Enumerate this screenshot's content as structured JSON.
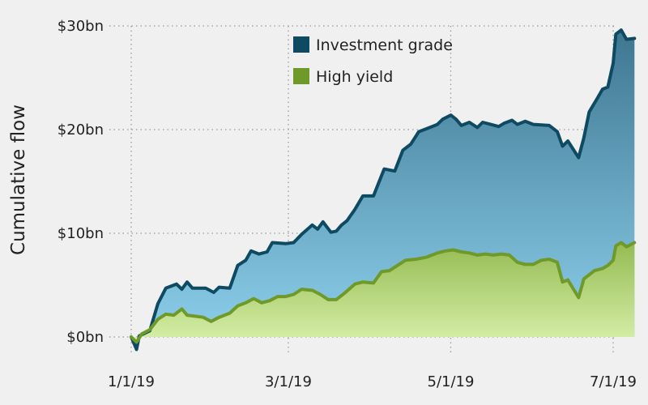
{
  "chart_data": {
    "type": "area",
    "ylabel": "Cumulative flow",
    "xlabel": "",
    "y_ticks": [
      "$0bn",
      "$10bn",
      "$20bn",
      "$30bn"
    ],
    "y_tick_values": [
      0,
      10,
      20,
      30
    ],
    "x_ticks": [
      "1/1/19",
      "3/1/19",
      "5/1/19",
      "7/1/19"
    ],
    "x_tick_values": [
      "2019-01-01",
      "2019-03-01",
      "2019-05-01",
      "2019-07-01"
    ],
    "xlim": [
      "2019-01-01",
      "2019-07-01"
    ],
    "ylim": [
      0,
      30
    ],
    "grid": true,
    "legend": "top-center",
    "series": [
      {
        "name": "Investment grade",
        "color": "#0e4a62",
        "fill_top": "#3e7690",
        "fill_bottom": "#8fd2ee",
        "points": [
          [
            "2019-01-01",
            0.0
          ],
          [
            "2019-01-03",
            -1.2
          ],
          [
            "2019-01-04",
            0.1
          ],
          [
            "2019-01-08",
            0.6
          ],
          [
            "2019-01-11",
            3.2
          ],
          [
            "2019-01-14",
            4.7
          ],
          [
            "2019-01-18",
            5.1
          ],
          [
            "2019-01-20",
            4.6
          ],
          [
            "2019-01-22",
            5.3
          ],
          [
            "2019-01-24",
            4.7
          ],
          [
            "2019-01-29",
            4.7
          ],
          [
            "2019-02-01",
            4.3
          ],
          [
            "2019-02-03",
            4.8
          ],
          [
            "2019-02-07",
            4.7
          ],
          [
            "2019-02-10",
            6.9
          ],
          [
            "2019-02-13",
            7.4
          ],
          [
            "2019-02-15",
            8.3
          ],
          [
            "2019-02-18",
            8.0
          ],
          [
            "2019-02-21",
            8.2
          ],
          [
            "2019-02-23",
            9.1
          ],
          [
            "2019-02-28",
            9.0
          ],
          [
            "2019-03-03",
            9.1
          ],
          [
            "2019-03-06",
            9.9
          ],
          [
            "2019-03-10",
            10.8
          ],
          [
            "2019-03-12",
            10.4
          ],
          [
            "2019-03-14",
            11.1
          ],
          [
            "2019-03-17",
            10.1
          ],
          [
            "2019-03-19",
            10.2
          ],
          [
            "2019-03-21",
            10.8
          ],
          [
            "2019-03-23",
            11.2
          ],
          [
            "2019-03-26",
            12.3
          ],
          [
            "2019-03-29",
            13.6
          ],
          [
            "2019-04-02",
            13.6
          ],
          [
            "2019-04-06",
            16.2
          ],
          [
            "2019-04-10",
            16.0
          ],
          [
            "2019-04-13",
            18.0
          ],
          [
            "2019-04-16",
            18.6
          ],
          [
            "2019-04-19",
            19.8
          ],
          [
            "2019-04-24",
            20.3
          ],
          [
            "2019-04-26",
            20.5
          ],
          [
            "2019-04-28",
            21.0
          ],
          [
            "2019-05-01",
            21.4
          ],
          [
            "2019-05-03",
            21.0
          ],
          [
            "2019-05-05",
            20.4
          ],
          [
            "2019-05-08",
            20.7
          ],
          [
            "2019-05-11",
            20.2
          ],
          [
            "2019-05-13",
            20.7
          ],
          [
            "2019-05-16",
            20.5
          ],
          [
            "2019-05-19",
            20.3
          ],
          [
            "2019-05-21",
            20.6
          ],
          [
            "2019-05-24",
            20.9
          ],
          [
            "2019-05-26",
            20.5
          ],
          [
            "2019-05-29",
            20.8
          ],
          [
            "2019-06-01",
            20.5
          ],
          [
            "2019-06-07",
            20.4
          ],
          [
            "2019-06-10",
            19.8
          ],
          [
            "2019-06-12",
            18.4
          ],
          [
            "2019-06-14",
            18.9
          ],
          [
            "2019-06-18",
            17.3
          ],
          [
            "2019-06-20",
            19.2
          ],
          [
            "2019-06-22",
            21.7
          ],
          [
            "2019-06-25",
            23.0
          ],
          [
            "2019-06-27",
            23.9
          ],
          [
            "2019-06-29",
            24.1
          ],
          [
            "2019-07-01",
            26.4
          ],
          [
            "2019-07-02",
            29.2
          ],
          [
            "2019-07-04",
            29.6
          ],
          [
            "2019-07-06",
            28.7
          ],
          [
            "2019-07-09",
            28.8
          ]
        ]
      },
      {
        "name": "High yield",
        "color": "#6f9a2a",
        "fill_top": "#95bb52",
        "fill_bottom": "#d6efa8",
        "points": [
          [
            "2019-01-01",
            0.0
          ],
          [
            "2019-01-03",
            -0.5
          ],
          [
            "2019-01-05",
            0.3
          ],
          [
            "2019-01-08",
            0.7
          ],
          [
            "2019-01-11",
            1.7
          ],
          [
            "2019-01-14",
            2.2
          ],
          [
            "2019-01-17",
            2.1
          ],
          [
            "2019-01-20",
            2.7
          ],
          [
            "2019-01-22",
            2.1
          ],
          [
            "2019-01-25",
            2.0
          ],
          [
            "2019-01-28",
            1.9
          ],
          [
            "2019-01-31",
            1.5
          ],
          [
            "2019-02-03",
            1.9
          ],
          [
            "2019-02-07",
            2.3
          ],
          [
            "2019-02-10",
            3.0
          ],
          [
            "2019-02-13",
            3.3
          ],
          [
            "2019-02-16",
            3.7
          ],
          [
            "2019-02-19",
            3.3
          ],
          [
            "2019-02-22",
            3.5
          ],
          [
            "2019-02-25",
            3.9
          ],
          [
            "2019-02-28",
            3.9
          ],
          [
            "2019-03-03",
            4.1
          ],
          [
            "2019-03-06",
            4.6
          ],
          [
            "2019-03-10",
            4.5
          ],
          [
            "2019-03-13",
            4.1
          ],
          [
            "2019-03-16",
            3.6
          ],
          [
            "2019-03-19",
            3.6
          ],
          [
            "2019-03-22",
            4.2
          ],
          [
            "2019-03-26",
            5.1
          ],
          [
            "2019-03-29",
            5.3
          ],
          [
            "2019-04-02",
            5.2
          ],
          [
            "2019-04-05",
            6.3
          ],
          [
            "2019-04-08",
            6.4
          ],
          [
            "2019-04-11",
            6.9
          ],
          [
            "2019-04-14",
            7.4
          ],
          [
            "2019-04-18",
            7.5
          ],
          [
            "2019-04-22",
            7.7
          ],
          [
            "2019-04-26",
            8.1
          ],
          [
            "2019-04-29",
            8.3
          ],
          [
            "2019-05-02",
            8.4
          ],
          [
            "2019-05-05",
            8.2
          ],
          [
            "2019-05-08",
            8.1
          ],
          [
            "2019-05-11",
            7.9
          ],
          [
            "2019-05-14",
            8.0
          ],
          [
            "2019-05-17",
            7.9
          ],
          [
            "2019-05-20",
            8.0
          ],
          [
            "2019-05-23",
            7.9
          ],
          [
            "2019-05-26",
            7.2
          ],
          [
            "2019-05-29",
            7.0
          ],
          [
            "2019-06-01",
            7.0
          ],
          [
            "2019-06-04",
            7.4
          ],
          [
            "2019-06-07",
            7.5
          ],
          [
            "2019-06-10",
            7.2
          ],
          [
            "2019-06-12",
            5.3
          ],
          [
            "2019-06-14",
            5.5
          ],
          [
            "2019-06-18",
            3.8
          ],
          [
            "2019-06-20",
            5.6
          ],
          [
            "2019-06-24",
            6.4
          ],
          [
            "2019-06-27",
            6.6
          ],
          [
            "2019-06-29",
            6.9
          ],
          [
            "2019-07-01",
            7.4
          ],
          [
            "2019-07-02",
            8.8
          ],
          [
            "2019-07-04",
            9.1
          ],
          [
            "2019-07-06",
            8.7
          ],
          [
            "2019-07-09",
            9.1
          ]
        ]
      }
    ]
  }
}
